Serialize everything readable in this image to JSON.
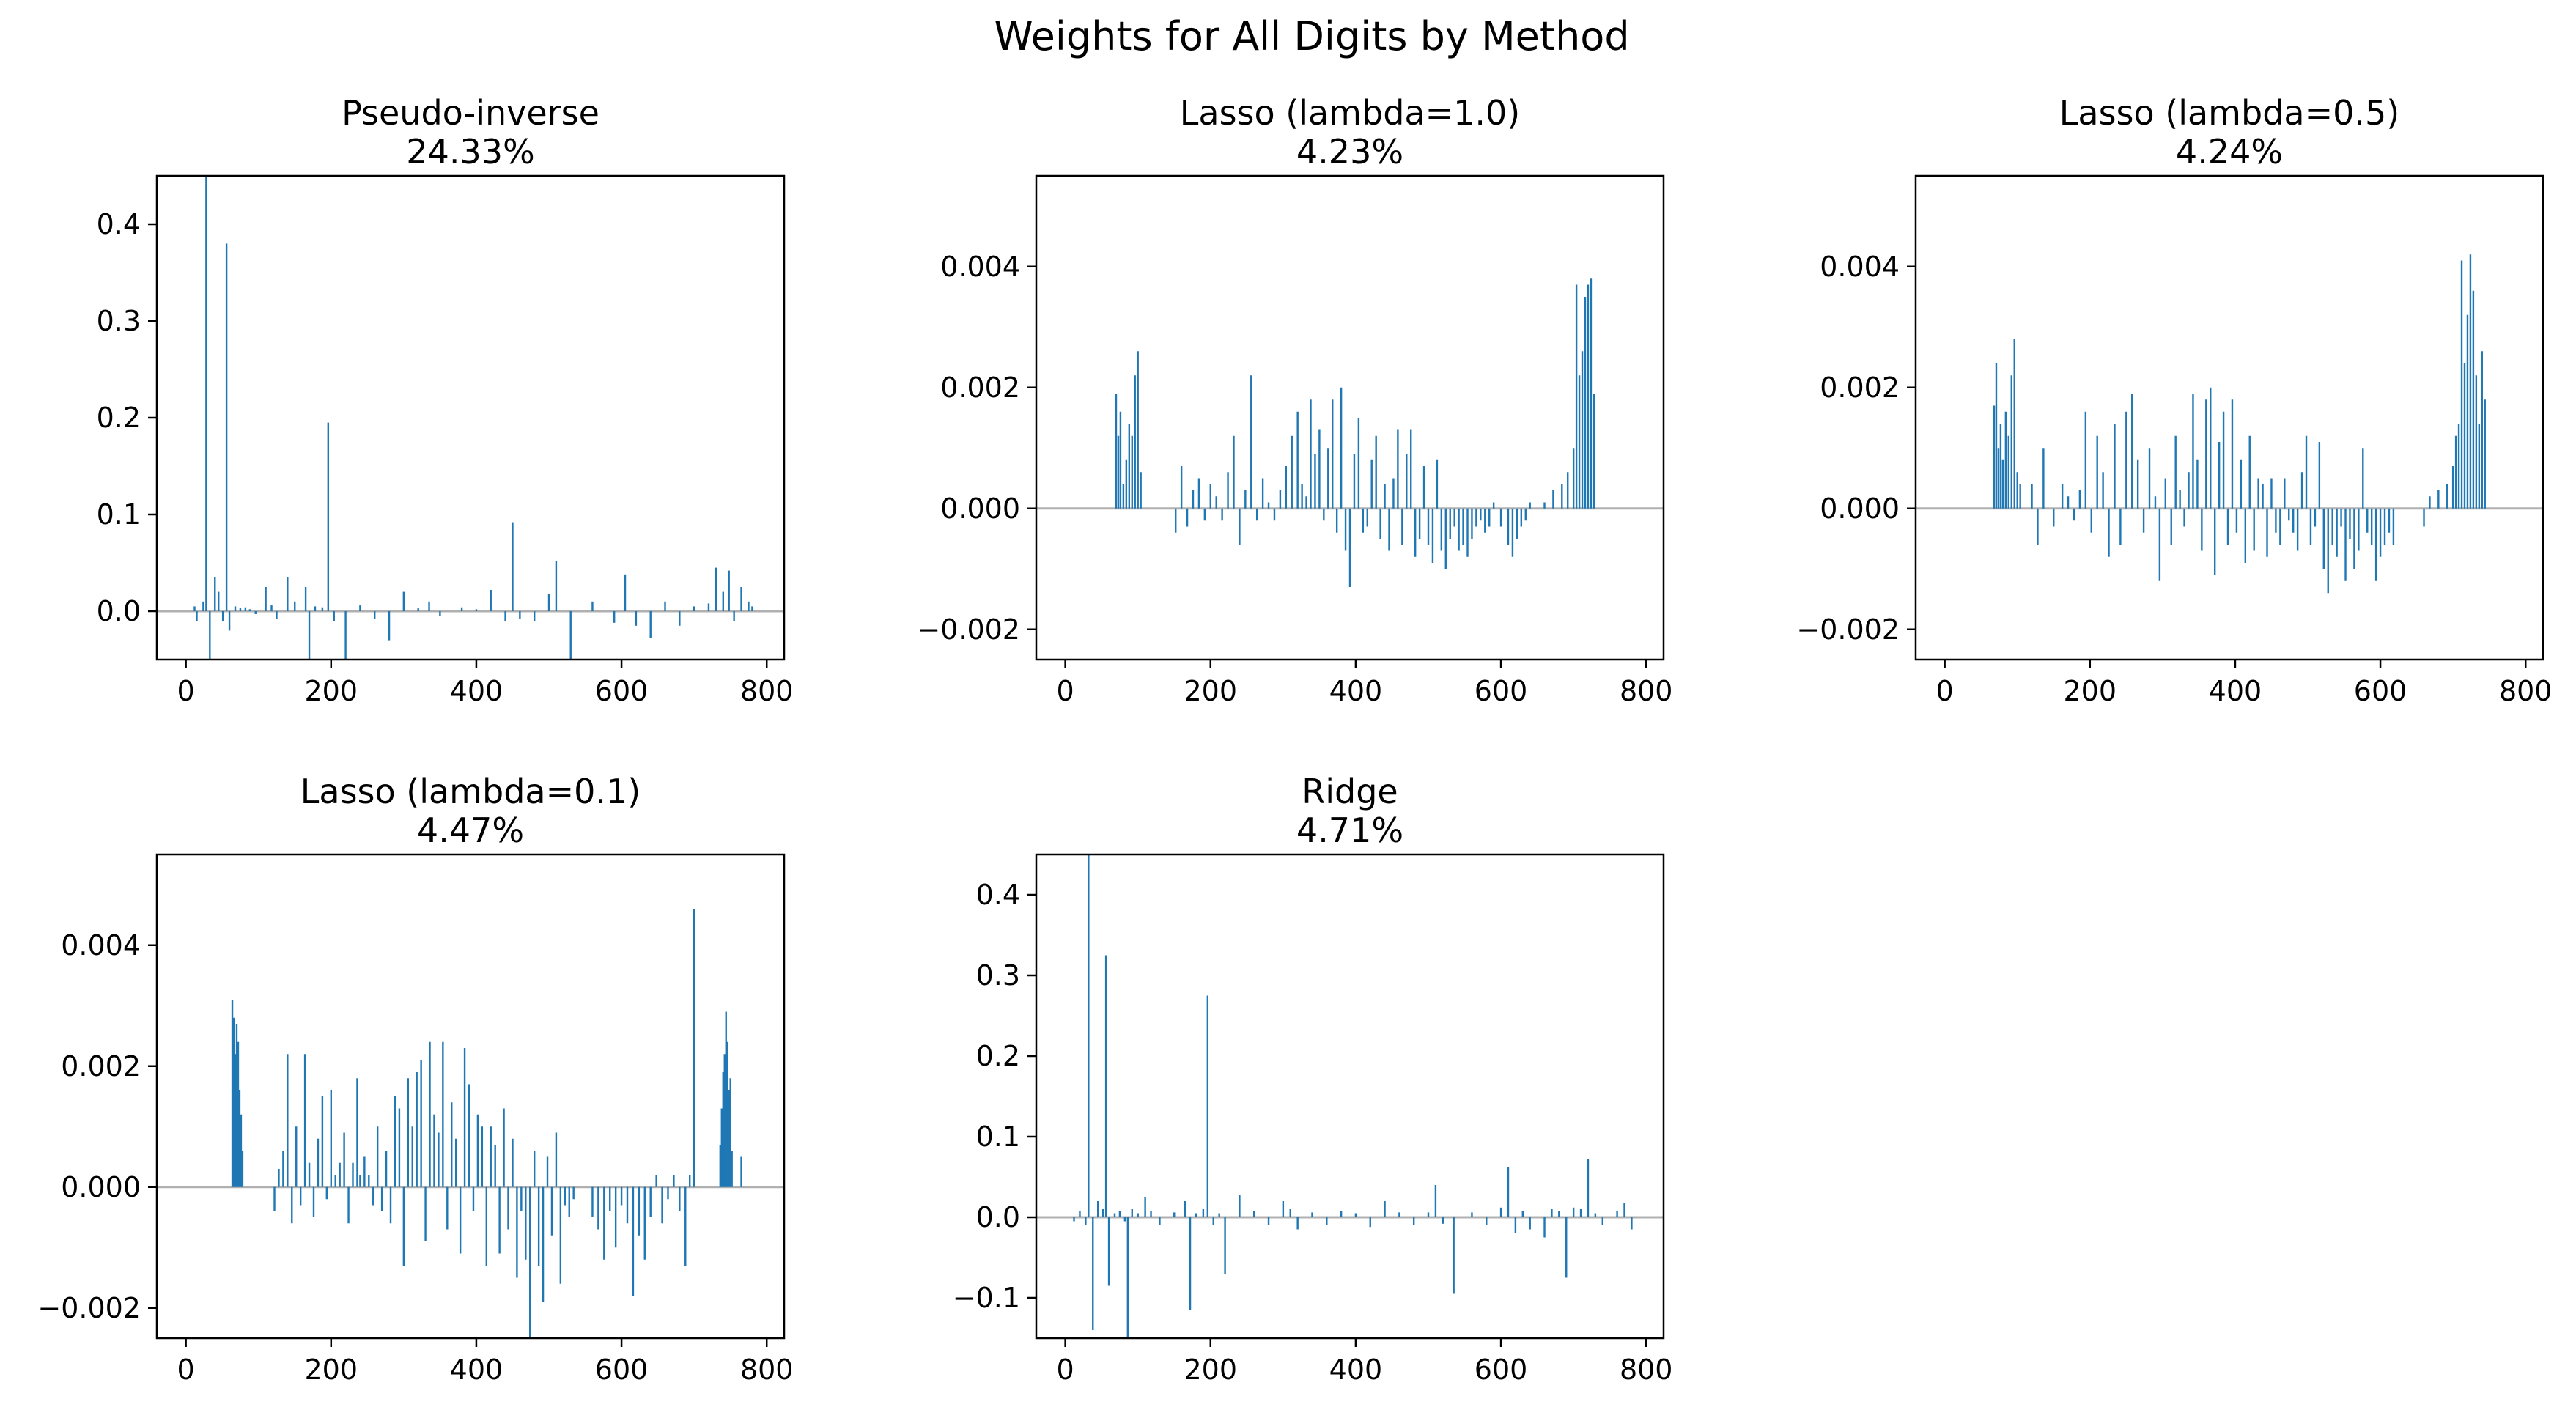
{
  "figure": {
    "suptitle": "Weights for All Digits by Method"
  },
  "colors": {
    "bars": "#1f77b4",
    "zero_line": "#b0b0b0",
    "axes": "#000000",
    "background": "#ffffff"
  },
  "chart_data": [
    {
      "type": "bar",
      "title_line1": "Pseudo-inverse",
      "title_line2": "24.33%",
      "xlim": [
        -40,
        824
      ],
      "ylim": [
        -0.05,
        0.45
      ],
      "xticks": [
        0,
        200,
        400,
        600,
        800
      ],
      "xtick_labels": [
        "0",
        "200",
        "400",
        "600",
        "800"
      ],
      "yticks": [
        0.0,
        0.1,
        0.2,
        0.3,
        0.4
      ],
      "ytick_labels": [
        "0.0",
        "0.1",
        "0.2",
        "0.3",
        "0.4"
      ],
      "zero_line": true,
      "x": [
        12,
        15,
        24,
        28,
        33,
        40,
        45,
        51,
        56,
        60,
        68,
        75,
        82,
        88,
        96,
        110,
        118,
        125,
        140,
        150,
        165,
        170,
        178,
        188,
        196,
        204,
        220,
        240,
        260,
        280,
        300,
        320,
        335,
        350,
        380,
        400,
        420,
        440,
        450,
        460,
        480,
        500,
        510,
        530,
        560,
        590,
        605,
        620,
        640,
        660,
        680,
        700,
        720,
        730,
        740,
        748,
        755,
        765,
        775,
        780
      ],
      "values": [
        0.005,
        -0.01,
        0.01,
        0.45,
        -0.05,
        0.035,
        0.02,
        -0.01,
        0.38,
        -0.02,
        0.005,
        0.003,
        0.004,
        0.002,
        -0.003,
        0.025,
        0.006,
        -0.008,
        0.035,
        0.01,
        0.025,
        -0.05,
        0.005,
        0.004,
        0.195,
        -0.01,
        -0.05,
        0.006,
        -0.008,
        -0.03,
        0.02,
        0.003,
        0.01,
        -0.005,
        0.004,
        0.002,
        0.022,
        -0.01,
        0.092,
        -0.008,
        -0.01,
        0.018,
        0.052,
        -0.05,
        0.01,
        -0.012,
        0.038,
        -0.015,
        -0.028,
        0.01,
        -0.015,
        0.005,
        0.008,
        0.045,
        0.02,
        0.042,
        -0.01,
        0.025,
        0.01,
        0.005
      ]
    },
    {
      "type": "bar",
      "title_line1": "Lasso (lambda=1.0)",
      "title_line2": "4.23%",
      "xlim": [
        -40,
        824
      ],
      "ylim": [
        -0.0025,
        0.0055
      ],
      "xticks": [
        0,
        200,
        400,
        600,
        800
      ],
      "xtick_labels": [
        "0",
        "200",
        "400",
        "600",
        "800"
      ],
      "yticks": [
        -0.002,
        0.0,
        0.002,
        0.004
      ],
      "ytick_labels": [
        "−0.002",
        "0.000",
        "0.002",
        "0.004"
      ],
      "zero_line": true,
      "x": [
        70,
        73,
        76,
        80,
        84,
        88,
        92,
        96,
        100,
        104,
        152,
        160,
        168,
        176,
        184,
        192,
        200,
        208,
        216,
        224,
        232,
        240,
        248,
        256,
        264,
        272,
        280,
        288,
        296,
        304,
        312,
        320,
        326,
        332,
        338,
        344,
        350,
        356,
        362,
        368,
        374,
        380,
        386,
        392,
        398,
        404,
        410,
        416,
        422,
        428,
        434,
        440,
        446,
        452,
        458,
        464,
        470,
        476,
        482,
        488,
        494,
        500,
        506,
        512,
        518,
        524,
        530,
        536,
        542,
        548,
        554,
        560,
        566,
        572,
        578,
        584,
        590,
        600,
        610,
        616,
        622,
        628,
        634,
        640,
        660,
        672,
        684,
        692,
        700,
        704,
        708,
        712,
        716,
        720,
        724,
        728
      ],
      "values": [
        0.0019,
        0.0012,
        0.0016,
        0.0004,
        0.0008,
        0.0014,
        0.0012,
        0.0022,
        0.0026,
        0.0006,
        -0.0004,
        0.0007,
        -0.0003,
        0.0003,
        0.0005,
        -0.0002,
        0.0004,
        0.0002,
        -0.0002,
        0.0006,
        0.0012,
        -0.0006,
        0.0003,
        0.0022,
        -0.0002,
        0.0005,
        0.0001,
        -0.0002,
        0.0003,
        0.0007,
        0.0012,
        0.0016,
        0.0004,
        0.0002,
        0.0018,
        0.0009,
        0.0013,
        -0.0002,
        0.001,
        0.0018,
        -0.0004,
        0.002,
        -0.0007,
        -0.0013,
        0.0009,
        0.0015,
        -0.0004,
        -0.0003,
        0.0008,
        0.0012,
        -0.0005,
        0.0004,
        -0.0007,
        0.0005,
        0.0013,
        -0.0006,
        0.0009,
        0.0013,
        -0.0008,
        -0.0005,
        0.0007,
        -0.0006,
        -0.0009,
        0.0008,
        -0.0007,
        -0.001,
        -0.0005,
        -0.0003,
        -0.0007,
        -0.0006,
        -0.0008,
        -0.0005,
        -0.0003,
        -0.0002,
        -0.0004,
        -0.0003,
        0.0001,
        -0.0003,
        -0.0006,
        -0.0008,
        -0.0005,
        -0.0003,
        -0.0002,
        0.0001,
        0.0001,
        0.0003,
        0.0004,
        0.0006,
        0.001,
        0.0037,
        0.0022,
        0.0026,
        0.0035,
        0.0037,
        0.0038,
        0.0019
      ]
    },
    {
      "type": "bar",
      "title_line1": "Lasso (lambda=0.5)",
      "title_line2": "4.24%",
      "xlim": [
        -40,
        824
      ],
      "ylim": [
        -0.0025,
        0.0055
      ],
      "xticks": [
        0,
        200,
        400,
        600,
        800
      ],
      "xtick_labels": [
        "0",
        "200",
        "400",
        "600",
        "800"
      ],
      "yticks": [
        -0.002,
        0.0,
        0.002,
        0.004
      ],
      "ytick_labels": [
        "−0.002",
        "0.000",
        "0.002",
        "0.004"
      ],
      "zero_line": true,
      "x": [
        68,
        71,
        74,
        77,
        80,
        84,
        88,
        92,
        96,
        100,
        104,
        120,
        128,
        136,
        150,
        162,
        170,
        178,
        186,
        194,
        202,
        210,
        218,
        226,
        234,
        242,
        250,
        258,
        266,
        274,
        282,
        290,
        296,
        304,
        312,
        318,
        324,
        330,
        336,
        342,
        348,
        354,
        360,
        366,
        372,
        378,
        384,
        390,
        396,
        402,
        408,
        414,
        420,
        426,
        432,
        438,
        444,
        450,
        456,
        462,
        468,
        474,
        480,
        486,
        492,
        498,
        504,
        510,
        516,
        522,
        528,
        534,
        540,
        546,
        552,
        558,
        564,
        570,
        576,
        582,
        588,
        594,
        600,
        606,
        612,
        618,
        660,
        668,
        680,
        692,
        700,
        704,
        708,
        712,
        716,
        720,
        724,
        728,
        732,
        736,
        740,
        744
      ],
      "values": [
        0.0017,
        0.0024,
        0.001,
        0.0014,
        0.0008,
        0.0016,
        0.0012,
        0.0022,
        0.0028,
        0.0006,
        0.0004,
        0.0004,
        -0.0006,
        0.001,
        -0.0003,
        0.0004,
        0.0002,
        -0.0002,
        0.0003,
        0.0016,
        -0.0004,
        0.0012,
        0.0006,
        -0.0008,
        0.0014,
        -0.0006,
        0.0016,
        0.0019,
        0.0008,
        -0.0004,
        0.001,
        0.0002,
        -0.0012,
        0.0005,
        -0.0006,
        0.0012,
        0.0003,
        -0.0003,
        0.0006,
        0.0019,
        0.0008,
        -0.0007,
        0.0018,
        0.002,
        -0.0011,
        0.0011,
        0.0016,
        -0.0006,
        0.0018,
        -0.0004,
        0.0008,
        -0.0009,
        0.0012,
        -0.0007,
        0.0005,
        0.0004,
        -0.0008,
        0.0005,
        -0.0004,
        -0.0006,
        0.0005,
        -0.0002,
        -0.0004,
        -0.0007,
        0.0006,
        0.0012,
        -0.0006,
        -0.0003,
        0.0011,
        -0.001,
        -0.0014,
        -0.0006,
        -0.0008,
        -0.0003,
        -0.0012,
        -0.0005,
        -0.001,
        -0.0007,
        0.001,
        -0.0004,
        -0.0006,
        -0.0012,
        -0.0008,
        -0.0006,
        -0.0004,
        -0.0006,
        -0.0003,
        0.0002,
        0.0003,
        0.0004,
        0.0007,
        0.0012,
        0.0014,
        0.0041,
        0.0024,
        0.0032,
        0.0042,
        0.0036,
        0.0022,
        0.0014,
        0.0026,
        0.0018
      ]
    },
    {
      "type": "bar",
      "title_line1": "Lasso (lambda=0.1)",
      "title_line2": "4.47%",
      "xlim": [
        -40,
        824
      ],
      "ylim": [
        -0.0025,
        0.0055
      ],
      "xticks": [
        0,
        200,
        400,
        600,
        800
      ],
      "xtick_labels": [
        "0",
        "200",
        "400",
        "600",
        "800"
      ],
      "yticks": [
        -0.002,
        0.0,
        0.002,
        0.004
      ],
      "ytick_labels": [
        "−0.002",
        "0.000",
        "0.002",
        "0.004"
      ],
      "zero_line": true,
      "x": [
        64,
        66,
        68,
        70,
        72,
        74,
        76,
        78,
        122,
        128,
        134,
        140,
        146,
        152,
        158,
        164,
        170,
        176,
        182,
        188,
        194,
        200,
        206,
        212,
        218,
        224,
        230,
        236,
        240,
        246,
        252,
        258,
        264,
        270,
        276,
        282,
        288,
        294,
        300,
        306,
        312,
        318,
        324,
        330,
        336,
        342,
        348,
        354,
        360,
        366,
        372,
        378,
        384,
        390,
        396,
        402,
        408,
        414,
        420,
        426,
        432,
        438,
        444,
        450,
        456,
        462,
        468,
        474,
        480,
        486,
        492,
        498,
        504,
        510,
        516,
        522,
        528,
        534,
        560,
        568,
        576,
        584,
        592,
        600,
        608,
        616,
        624,
        632,
        640,
        648,
        656,
        664,
        672,
        680,
        688,
        694,
        700,
        736,
        738,
        740,
        742,
        744,
        746,
        748,
        750,
        752,
        765
      ],
      "values": [
        0.0031,
        0.0028,
        0.0022,
        0.0027,
        0.0024,
        0.0016,
        0.0012,
        0.0006,
        -0.0004,
        0.0003,
        0.0006,
        0.0022,
        -0.0006,
        0.001,
        -0.0003,
        0.0022,
        0.0004,
        -0.0005,
        0.0008,
        0.0015,
        -0.0002,
        0.0016,
        0.0002,
        0.0004,
        0.0009,
        -0.0006,
        0.0004,
        0.0018,
        0.0002,
        0.0005,
        0.0002,
        -0.0003,
        0.001,
        -0.0004,
        0.0006,
        -0.0006,
        0.0015,
        0.0013,
        -0.0013,
        0.0018,
        0.001,
        0.0019,
        0.0021,
        -0.0009,
        0.0024,
        0.0012,
        0.0009,
        0.0024,
        -0.0007,
        0.0014,
        0.0008,
        -0.0011,
        0.0023,
        0.0017,
        -0.0004,
        0.0012,
        0.001,
        -0.0013,
        0.001,
        0.0007,
        -0.0011,
        0.0013,
        -0.0007,
        0.0008,
        -0.0015,
        -0.0004,
        -0.0012,
        -0.0025,
        0.0006,
        -0.0013,
        -0.0019,
        0.0005,
        -0.0008,
        0.0009,
        -0.0016,
        -0.0003,
        -0.0005,
        -0.0002,
        -0.0005,
        -0.0007,
        -0.0012,
        -0.0004,
        -0.001,
        -0.0003,
        -0.0006,
        -0.0018,
        -0.0008,
        -0.0012,
        -0.0005,
        0.0002,
        -0.0006,
        -0.0002,
        0.0002,
        -0.0004,
        -0.0013,
        0.0002,
        0.0046,
        0.0007,
        0.0013,
        0.0019,
        0.0022,
        0.0029,
        0.0024,
        0.0016,
        0.0018,
        0.0006,
        0.0005
      ]
    },
    {
      "type": "bar",
      "title_line1": "Ridge",
      "title_line2": "4.71%",
      "xlim": [
        -40,
        824
      ],
      "ylim": [
        -0.15,
        0.45
      ],
      "xticks": [
        0,
        200,
        400,
        600,
        800
      ],
      "xtick_labels": [
        "0",
        "200",
        "400",
        "600",
        "800"
      ],
      "yticks": [
        -0.1,
        0.0,
        0.1,
        0.2,
        0.3,
        0.4
      ],
      "ytick_labels": [
        "−0.1",
        "0.0",
        "0.1",
        "0.2",
        "0.3",
        "0.4"
      ],
      "zero_line": true,
      "x": [
        12,
        20,
        28,
        32,
        38,
        45,
        52,
        56,
        60,
        68,
        75,
        82,
        86,
        92,
        100,
        110,
        118,
        130,
        150,
        165,
        172,
        180,
        190,
        196,
        204,
        212,
        220,
        240,
        260,
        280,
        300,
        310,
        320,
        340,
        360,
        380,
        400,
        420,
        440,
        460,
        480,
        500,
        510,
        520,
        535,
        560,
        580,
        600,
        610,
        620,
        630,
        640,
        660,
        670,
        680,
        690,
        700,
        710,
        720,
        730,
        740,
        760,
        770,
        780
      ],
      "values": [
        -0.005,
        0.008,
        -0.01,
        0.45,
        -0.14,
        0.02,
        0.01,
        0.325,
        -0.085,
        0.005,
        0.008,
        -0.005,
        -0.15,
        0.01,
        0.005,
        0.025,
        0.008,
        -0.01,
        0.006,
        0.02,
        -0.115,
        0.005,
        0.01,
        0.275,
        -0.01,
        0.005,
        -0.07,
        0.028,
        0.008,
        -0.01,
        0.02,
        0.01,
        -0.015,
        0.006,
        -0.01,
        0.008,
        0.005,
        -0.012,
        0.02,
        0.006,
        -0.01,
        0.006,
        0.04,
        -0.008,
        -0.095,
        0.006,
        -0.01,
        0.012,
        0.062,
        -0.02,
        0.008,
        -0.015,
        -0.025,
        0.01,
        0.008,
        -0.075,
        0.012,
        0.01,
        0.072,
        0.005,
        -0.01,
        0.008,
        0.018,
        -0.015
      ]
    }
  ]
}
